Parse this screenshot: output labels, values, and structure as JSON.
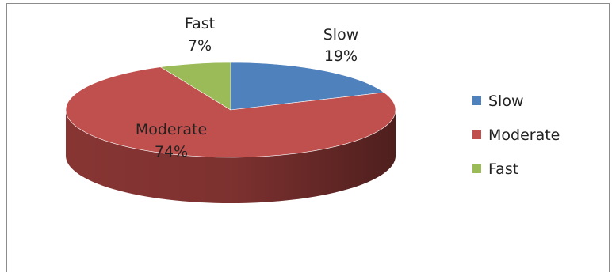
{
  "chart_data": {
    "type": "pie",
    "title": "",
    "categories": [
      "Slow",
      "Moderate",
      "Fast"
    ],
    "values": [
      19,
      74,
      7
    ],
    "unit": "%",
    "colors": [
      "#4f81bd",
      "#c0504d",
      "#9bbb59"
    ],
    "side_colors": [
      "#3b6190",
      "#8e3836",
      "#74903f"
    ],
    "data_labels": [
      {
        "name": "Slow",
        "value": "19%"
      },
      {
        "name": "Moderate",
        "value": "74%"
      },
      {
        "name": "Fast",
        "value": "7%"
      }
    ],
    "legend": {
      "position": "right",
      "entries": [
        "Slow",
        "Moderate",
        "Fast"
      ]
    },
    "style": "3d-pie"
  }
}
